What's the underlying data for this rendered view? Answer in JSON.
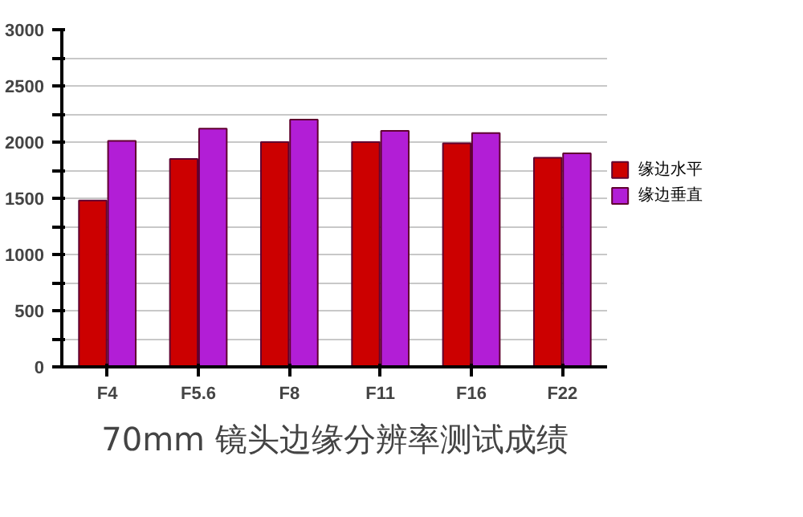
{
  "chart_data": {
    "type": "bar",
    "title": "70mm 镜头边缘分辨率测试成绩",
    "categories": [
      "F4",
      "F5.6",
      "F8",
      "F11",
      "F16",
      "F22"
    ],
    "series": [
      {
        "name": "缘边水平",
        "color": "#cc0000",
        "values": [
          1480,
          1850,
          2000,
          2000,
          1990,
          1860
        ]
      },
      {
        "name": "缘边垂直",
        "color": "#b21ed6",
        "values": [
          2010,
          2120,
          2200,
          2100,
          2080,
          1900
        ]
      }
    ],
    "ylim": [
      0,
      3000
    ],
    "yticks": [
      0,
      {
        "value": 250,
        "label": null
      },
      500,
      {
        "value": 750,
        "label": null
      },
      1000,
      {
        "value": 1250,
        "label": null
      },
      1500,
      {
        "value": 1750,
        "label": null
      },
      2000,
      {
        "value": 2250,
        "label": null
      },
      2500,
      {
        "value": 2750,
        "label": null
      },
      3000
    ],
    "grid": "y",
    "legend": "right"
  }
}
